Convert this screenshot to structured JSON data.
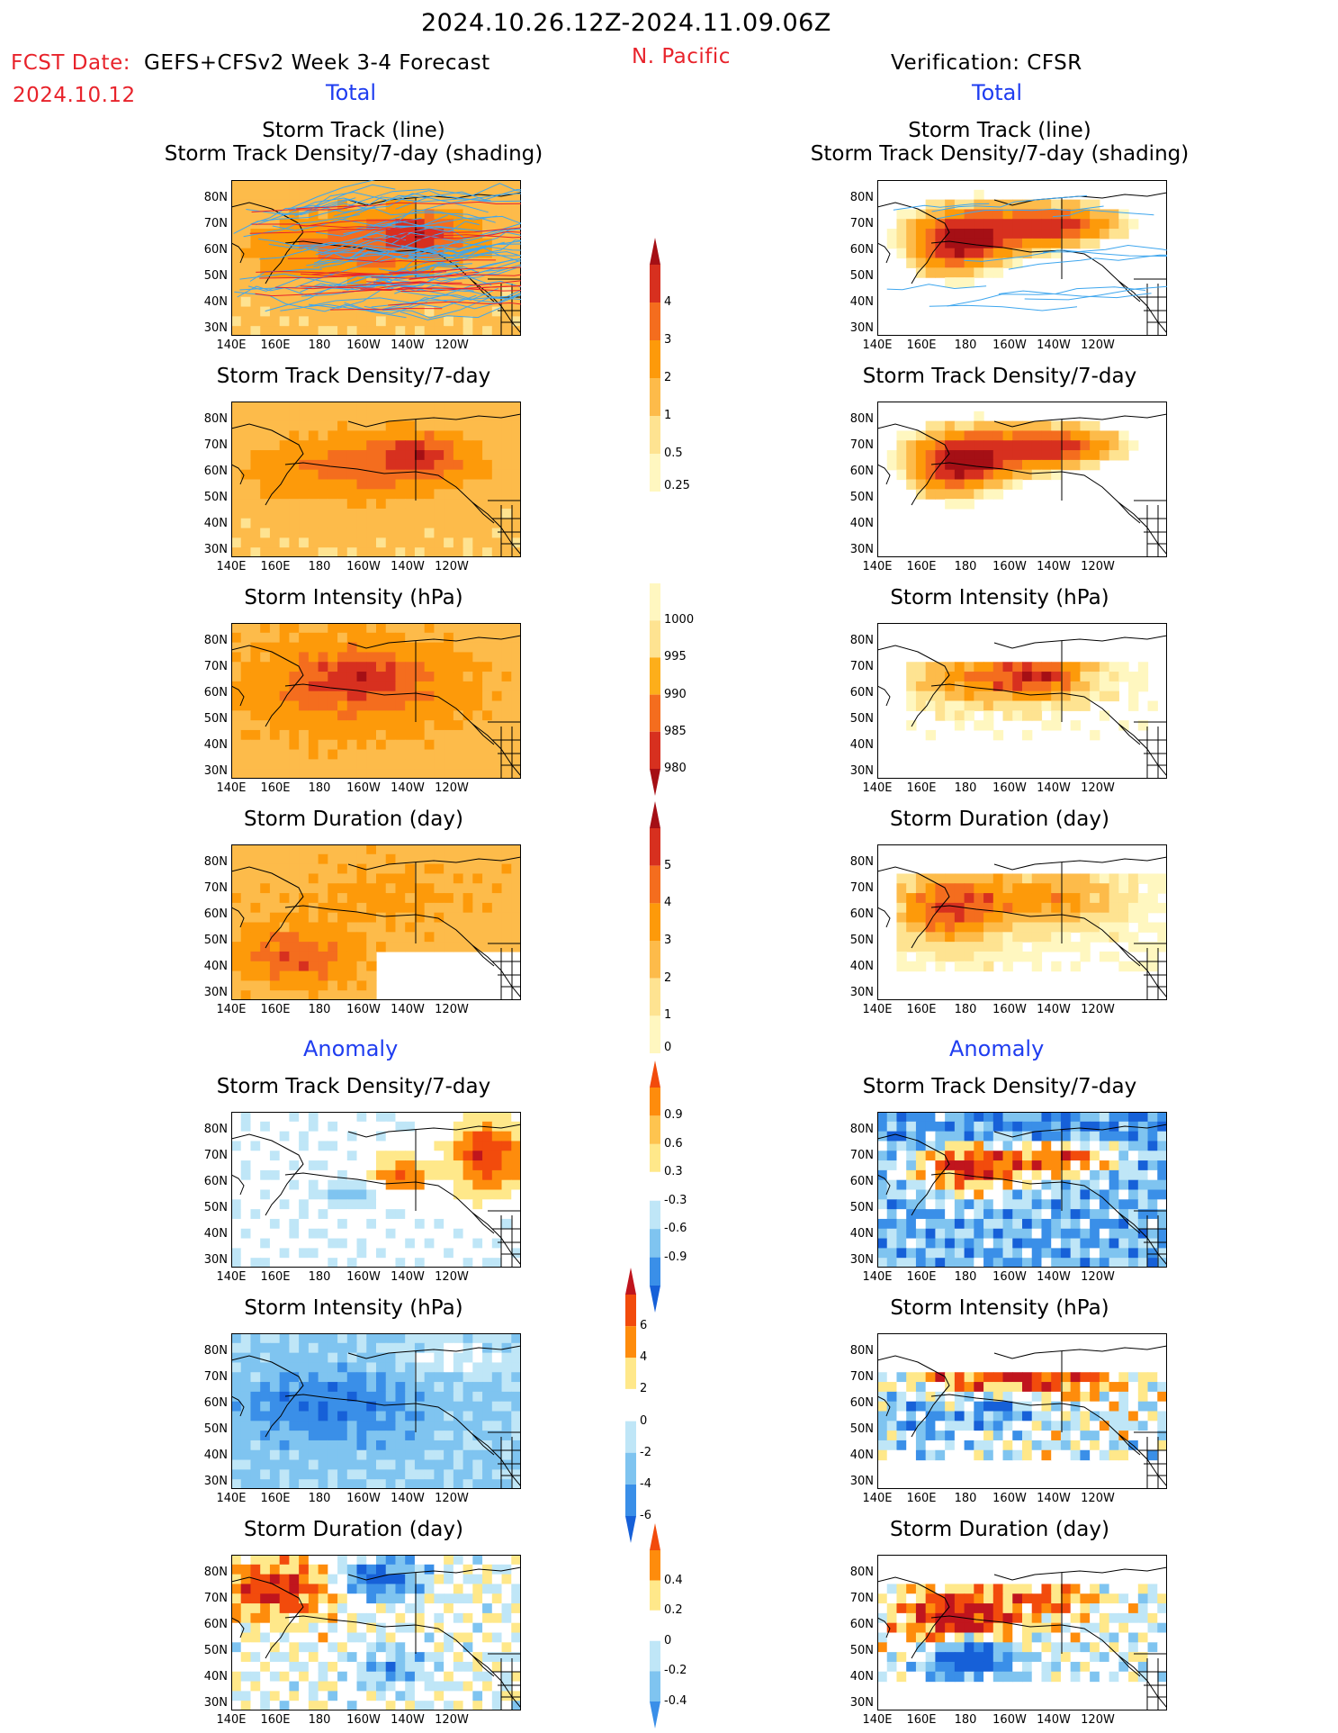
{
  "header": {
    "date_range": "2024.10.26.12Z-2024.11.09.06Z",
    "fcst_label": "FCST Date:",
    "fcst_date": "2024.10.12",
    "model": "GEFS+CFSv2 Week 3-4 Forecast",
    "region": "N. Pacific",
    "verification": "Verification: CFSR"
  },
  "sections": {
    "total": "Total",
    "anomaly": "Anomaly"
  },
  "panel_titles": {
    "track_line": "Storm Track (line)",
    "track_shading": "Storm Track Density/7-day (shading)",
    "density": "Storm Track Density/7-day",
    "intensity": "Storm Intensity (hPa)",
    "duration": "Storm Duration (day)"
  },
  "axes": {
    "lat_ticks": [
      "80N",
      "70N",
      "60N",
      "50N",
      "40N",
      "30N"
    ],
    "lon_ticks": [
      "140E",
      "160E",
      "180",
      "160W",
      "140W",
      "120W"
    ]
  },
  "colorbars": {
    "density_total": {
      "labels": [
        "4",
        "3",
        "2",
        "1",
        "0.5",
        "0.25"
      ],
      "colors": [
        "#a50f15",
        "#d7301f",
        "#f46d1e",
        "#fd9a0a",
        "#fdbb4a",
        "#fee391",
        "#fff7c0"
      ]
    },
    "intensity_total": {
      "labels": [
        "1000",
        "995",
        "990",
        "985",
        "980"
      ],
      "colors": [
        "#fff7c0",
        "#fee391",
        "#fdae1a",
        "#f46d1e",
        "#d7301f",
        "#a50f15"
      ]
    },
    "duration_total": {
      "labels": [
        "5",
        "4",
        "3",
        "2",
        "1",
        "0"
      ],
      "colors": [
        "#a50f15",
        "#d7301f",
        "#f46d1e",
        "#fd9a0a",
        "#fdbb4a",
        "#fee391",
        "#fff7c0"
      ]
    },
    "density_anom": {
      "labels": [
        "0.9",
        "0.6",
        "0.3",
        "-0.3",
        "-0.6",
        "-0.9"
      ],
      "colors": [
        "#f24b0c",
        "#fe8c0c",
        "#fec44f",
        "#ffe88a",
        "#ffffff",
        "#bfe6f7",
        "#7fc4f0",
        "#3a8fe8",
        "#1660d8"
      ]
    },
    "intensity_anom": {
      "labels": [
        "6",
        "4",
        "2",
        "0",
        "-2",
        "-4",
        "-6"
      ],
      "colors": [
        "#c0151d",
        "#f24b0c",
        "#fe8c0c",
        "#ffe88a",
        "#ffffff",
        "#bfe6f7",
        "#7fc4f0",
        "#3a8fe8",
        "#1660d8"
      ]
    },
    "duration_anom": {
      "labels": [
        "0.4",
        "0.2",
        "0",
        "-0.2",
        "-0.4"
      ],
      "colors": [
        "#f24b0c",
        "#fe8c0c",
        "#ffe88a",
        "#ffffff",
        "#bfe6f7",
        "#7fc4f0",
        "#3a8fe8"
      ]
    }
  }
}
